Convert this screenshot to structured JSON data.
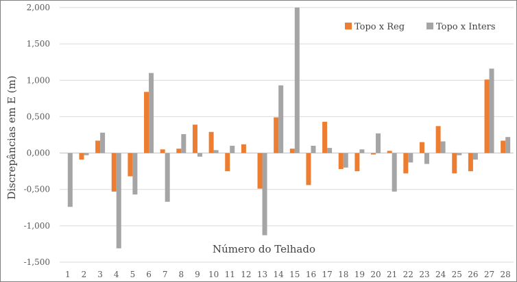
{
  "chart_data": {
    "type": "bar",
    "title": "",
    "xlabel": "Número do Telhado",
    "ylabel": "Discrepâncias em E (m)",
    "categories": [
      "1",
      "2",
      "3",
      "4",
      "5",
      "6",
      "7",
      "8",
      "9",
      "10",
      "11",
      "12",
      "13",
      "14",
      "15",
      "16",
      "17",
      "18",
      "19",
      "20",
      "21",
      "22",
      "23",
      "24",
      "25",
      "26",
      "27",
      "28"
    ],
    "series": [
      {
        "name": "Topo x Reg",
        "color": "#ed7d31",
        "values": [
          0.0,
          -0.09,
          0.17,
          -0.53,
          -0.32,
          0.84,
          0.05,
          0.06,
          0.39,
          0.29,
          -0.25,
          0.12,
          -0.49,
          0.49,
          0.06,
          -0.44,
          0.43,
          -0.22,
          -0.25,
          -0.02,
          0.03,
          -0.28,
          0.15,
          0.37,
          -0.28,
          -0.25,
          1.01,
          0.17
        ]
      },
      {
        "name": "Topo x Inters",
        "color": "#a5a5a5",
        "values": [
          -0.74,
          -0.03,
          0.28,
          -1.31,
          -0.57,
          1.1,
          -0.67,
          0.26,
          -0.05,
          0.04,
          0.1,
          0.0,
          -1.13,
          0.93,
          2.0,
          0.1,
          0.07,
          -0.2,
          0.05,
          0.27,
          -0.53,
          -0.13,
          -0.15,
          0.16,
          -0.03,
          -0.09,
          1.16,
          0.22
        ]
      }
    ],
    "ylim": [
      -1.5,
      2.0
    ],
    "yticks": [
      -1.5,
      -1.0,
      -0.5,
      0.0,
      0.5,
      1.0,
      1.5,
      2.0
    ],
    "ytick_labels": [
      "-1,500",
      "-1,000",
      "-0,500",
      "0,000",
      "0,500",
      "1,000",
      "1,500",
      "2,000"
    ],
    "grid": true,
    "legend_position": "top-right",
    "colors": {
      "gridline": "#d9d9d9",
      "zero_line": "#bfbfbf"
    }
  }
}
